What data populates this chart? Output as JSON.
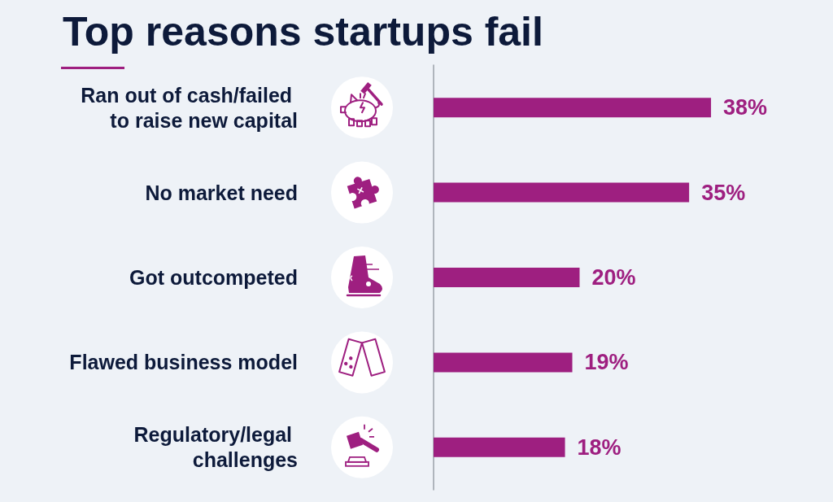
{
  "chart_data": {
    "type": "bar",
    "orientation": "horizontal",
    "title": "Top reasons startups fail",
    "categories": [
      "Ran out of cash/failed to raise new capital",
      "No market need",
      "Got outcompeted",
      "Flawed business model",
      "Regulatory/legal challenges"
    ],
    "values": [
      38,
      35,
      20,
      19,
      18
    ],
    "value_labels": [
      "38%",
      "35%",
      "20%",
      "19%",
      "18%"
    ],
    "color": "#9e1f80",
    "tick_labels": "y"
  }
}
